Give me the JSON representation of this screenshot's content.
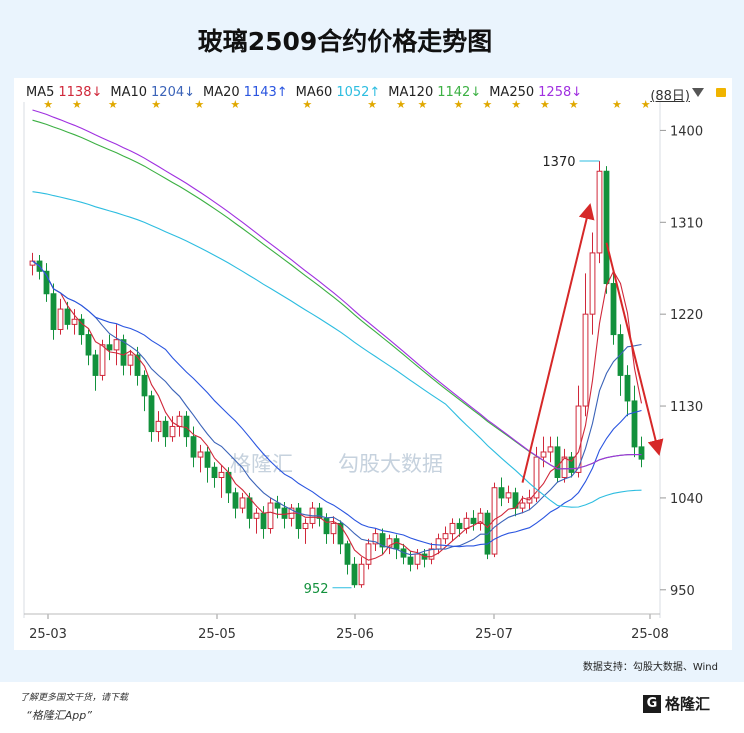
{
  "title": "玻璃2509合约价格走势图",
  "legend": [
    {
      "label": "MA5",
      "value": "1138↓",
      "color": "#d0283a"
    },
    {
      "label": "MA10",
      "value": "1204↓",
      "color": "#3b63b8"
    },
    {
      "label": "MA20",
      "value": "1143↑",
      "color": "#2a55e0"
    },
    {
      "label": "MA60",
      "value": "1052↑",
      "color": "#2dbde0"
    },
    {
      "label": "MA120",
      "value": "1142↓",
      "color": "#3cb043"
    },
    {
      "label": "MA250",
      "value": "1258↓",
      "color": "#a030e0"
    }
  ],
  "period": "(88日)",
  "source": "数据支持：勾股大数据、Wind",
  "watermark": {
    "brand": "格隆汇",
    "data": "勾股大数据"
  },
  "footer": {
    "line1": "了解更多国文干货，请下载",
    "line2": "“格隆汇App”",
    "logo_text": "格隆汇",
    "logo_mark": "G"
  },
  "colors": {
    "up": "#d0283a",
    "down": "#12913c",
    "arrow": "#d62828"
  },
  "chart_data": {
    "type": "candlestick",
    "title": "玻璃2509合约价格走势图",
    "ylim": [
      940,
      1420
    ],
    "y_ticks": [
      1400,
      1310,
      1220,
      1130,
      1040,
      950
    ],
    "x_ticks": [
      "25-03",
      "25-05",
      "25-06",
      "25-07",
      "25-08"
    ],
    "annotations": [
      {
        "label": "1370",
        "value": 1370
      },
      {
        "label": "952",
        "value": 952
      }
    ],
    "candles": [
      [
        1268,
        1272,
        1258,
        1280
      ],
      [
        1272,
        1262,
        1254,
        1278
      ],
      [
        1262,
        1240,
        1232,
        1270
      ],
      [
        1240,
        1205,
        1195,
        1250
      ],
      [
        1205,
        1225,
        1200,
        1235
      ],
      [
        1225,
        1210,
        1205,
        1232
      ],
      [
        1210,
        1215,
        1200,
        1225
      ],
      [
        1215,
        1200,
        1190,
        1220
      ],
      [
        1200,
        1180,
        1170,
        1205
      ],
      [
        1180,
        1160,
        1145,
        1185
      ],
      [
        1160,
        1190,
        1155,
        1195
      ],
      [
        1190,
        1185,
        1175,
        1200
      ],
      [
        1185,
        1195,
        1170,
        1210
      ],
      [
        1195,
        1170,
        1160,
        1200
      ],
      [
        1170,
        1180,
        1160,
        1185
      ],
      [
        1180,
        1160,
        1150,
        1188
      ],
      [
        1160,
        1140,
        1125,
        1165
      ],
      [
        1140,
        1105,
        1095,
        1145
      ],
      [
        1105,
        1115,
        1095,
        1125
      ],
      [
        1115,
        1100,
        1090,
        1120
      ],
      [
        1100,
        1110,
        1095,
        1120
      ],
      [
        1110,
        1120,
        1100,
        1125
      ],
      [
        1120,
        1100,
        1090,
        1125
      ],
      [
        1100,
        1080,
        1070,
        1110
      ],
      [
        1080,
        1085,
        1065,
        1092
      ],
      [
        1085,
        1070,
        1055,
        1090
      ],
      [
        1070,
        1060,
        1050,
        1075
      ],
      [
        1060,
        1065,
        1040,
        1072
      ],
      [
        1065,
        1045,
        1035,
        1070
      ],
      [
        1045,
        1030,
        1020,
        1050
      ],
      [
        1030,
        1040,
        1025,
        1045
      ],
      [
        1040,
        1020,
        1010,
        1045
      ],
      [
        1020,
        1025,
        1005,
        1030
      ],
      [
        1025,
        1010,
        1000,
        1032
      ],
      [
        1010,
        1035,
        1005,
        1040
      ],
      [
        1035,
        1030,
        1020,
        1042
      ],
      [
        1030,
        1020,
        1010,
        1036
      ],
      [
        1020,
        1030,
        1012,
        1034
      ],
      [
        1030,
        1010,
        1000,
        1035
      ],
      [
        1010,
        1015,
        995,
        1020
      ],
      [
        1015,
        1030,
        1010,
        1036
      ],
      [
        1030,
        1020,
        1012,
        1035
      ],
      [
        1020,
        1005,
        995,
        1025
      ],
      [
        1005,
        1015,
        995,
        1022
      ],
      [
        1015,
        995,
        985,
        1018
      ],
      [
        995,
        975,
        965,
        998
      ],
      [
        975,
        955,
        952,
        982
      ],
      [
        955,
        975,
        952,
        982
      ],
      [
        975,
        995,
        970,
        1000
      ],
      [
        995,
        1005,
        988,
        1010
      ],
      [
        1005,
        992,
        985,
        1010
      ],
      [
        992,
        1000,
        985,
        1004
      ],
      [
        1000,
        990,
        980,
        1004
      ],
      [
        990,
        982,
        975,
        995
      ],
      [
        982,
        975,
        968,
        988
      ],
      [
        975,
        985,
        970,
        990
      ],
      [
        985,
        980,
        972,
        990
      ],
      [
        980,
        990,
        975,
        996
      ],
      [
        990,
        1000,
        985,
        1005
      ],
      [
        1000,
        1005,
        995,
        1012
      ],
      [
        1005,
        1015,
        998,
        1020
      ],
      [
        1015,
        1010,
        1002,
        1020
      ],
      [
        1010,
        1020,
        1005,
        1026
      ],
      [
        1020,
        1015,
        1008,
        1028
      ],
      [
        1015,
        1025,
        1008,
        1030
      ],
      [
        1025,
        985,
        980,
        1028
      ],
      [
        985,
        1050,
        982,
        1055
      ],
      [
        1050,
        1040,
        1032,
        1060
      ],
      [
        1040,
        1045,
        1035,
        1052
      ],
      [
        1045,
        1030,
        1022,
        1050
      ],
      [
        1030,
        1035,
        1025,
        1042
      ],
      [
        1035,
        1040,
        1028,
        1048
      ],
      [
        1040,
        1080,
        1036,
        1090
      ],
      [
        1080,
        1085,
        1070,
        1100
      ],
      [
        1085,
        1090,
        1075,
        1100
      ],
      [
        1090,
        1060,
        1055,
        1100
      ],
      [
        1060,
        1080,
        1055,
        1088
      ],
      [
        1080,
        1065,
        1060,
        1085
      ],
      [
        1065,
        1130,
        1060,
        1150
      ],
      [
        1130,
        1220,
        1120,
        1260
      ],
      [
        1220,
        1280,
        1200,
        1300
      ],
      [
        1280,
        1360,
        1270,
        1370
      ],
      [
        1360,
        1250,
        1240,
        1365
      ],
      [
        1250,
        1200,
        1190,
        1260
      ],
      [
        1200,
        1160,
        1140,
        1210
      ],
      [
        1160,
        1135,
        1120,
        1170
      ],
      [
        1135,
        1090,
        1080,
        1150
      ],
      [
        1090,
        1078,
        1070,
        1100
      ]
    ]
  }
}
